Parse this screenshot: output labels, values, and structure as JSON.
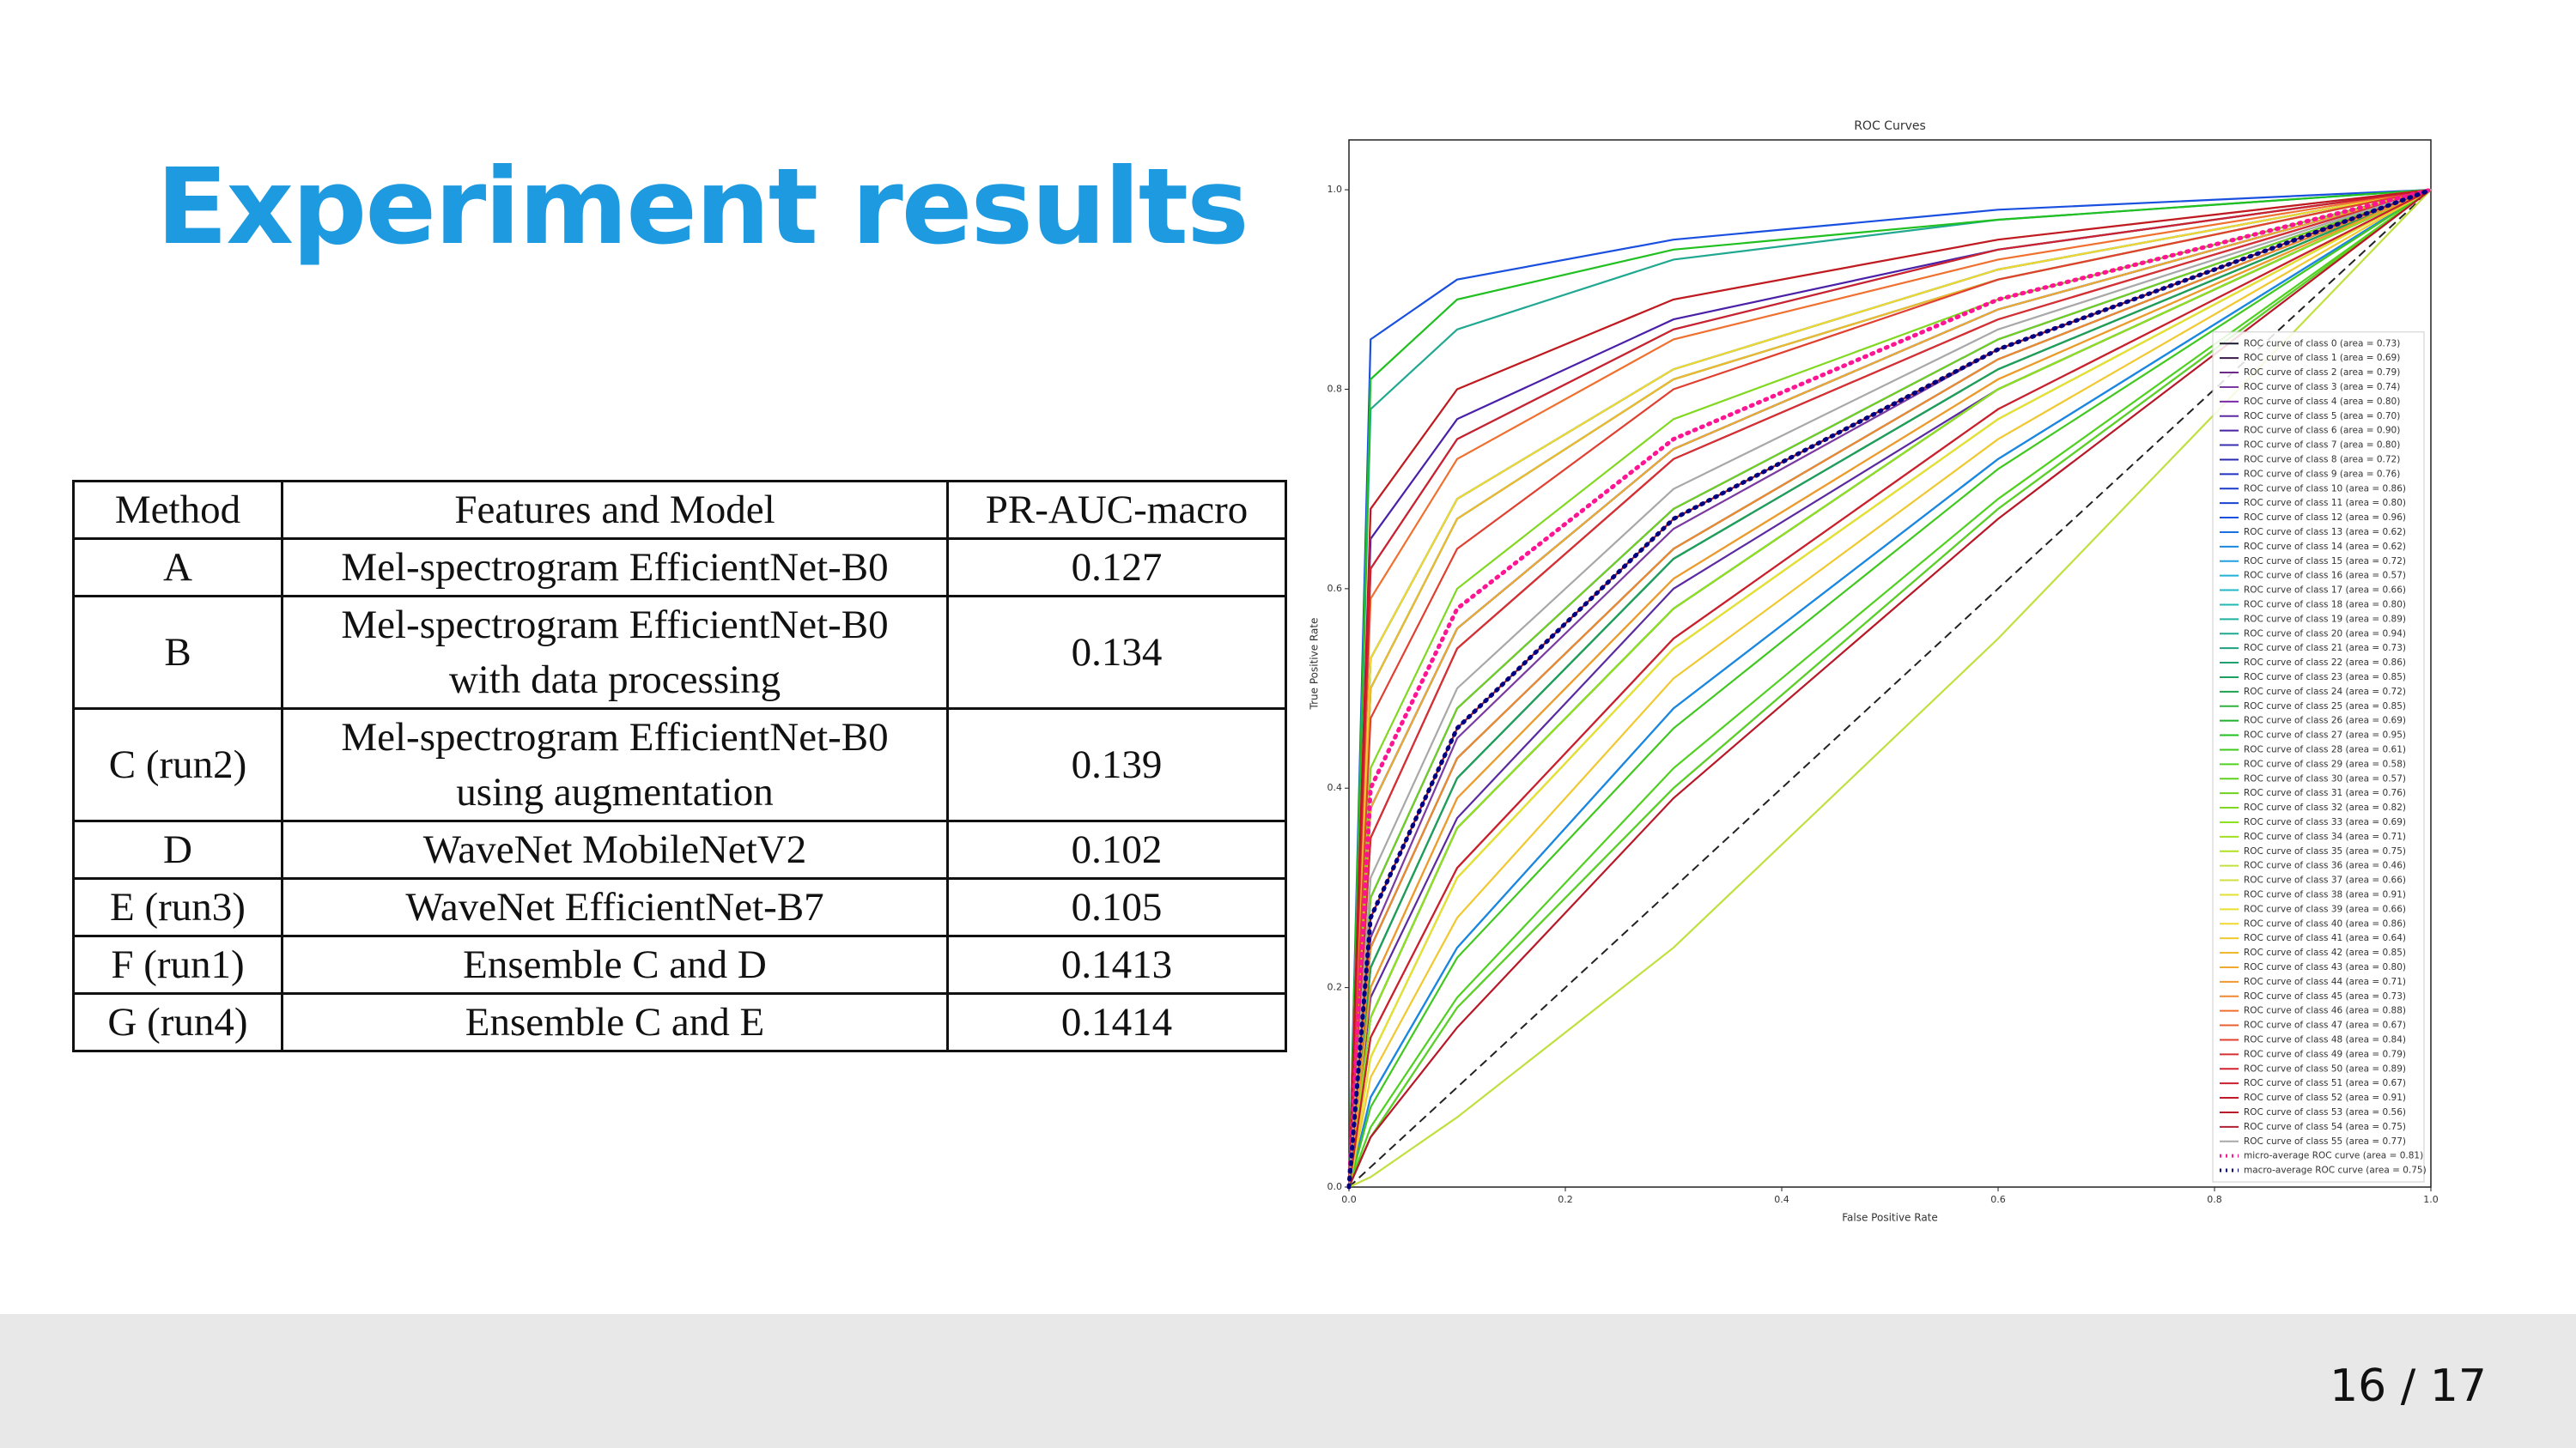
{
  "slide": {
    "title": "Experiment results",
    "page": "16 / 17"
  },
  "table": {
    "header": [
      "Method",
      "Features and Model",
      "PR-AUC-macro"
    ],
    "rows": [
      [
        "A",
        "Mel-spectrogram EfficientNet-B0",
        "0.127"
      ],
      [
        "B",
        [
          "Mel-spectrogram EfficientNet-B0",
          "with data processing"
        ],
        "0.134"
      ],
      [
        "C (run2)",
        [
          "Mel-spectrogram EfficientNet-B0",
          "using augmentation"
        ],
        "0.139"
      ],
      [
        "D",
        "WaveNet MobileNetV2",
        "0.102"
      ],
      [
        "E (run3)",
        "WaveNet EfficientNet-B7",
        "0.105"
      ],
      [
        "F (run1)",
        "Ensemble C and D",
        "0.1413"
      ],
      [
        "G (run4)",
        "Ensemble C and E",
        "0.1414"
      ]
    ]
  },
  "chart_data": {
    "type": "line",
    "title": "ROC Curves",
    "x_label": "False Positive Rate",
    "y_label": "True Positive Rate",
    "xlim": [
      0,
      1
    ],
    "ylim": [
      0,
      1.05
    ],
    "xticks": [
      {
        "value": 0,
        "label": "0.0"
      },
      0.2,
      0.4,
      0.6,
      0.8,
      {
        "value": 1,
        "label": "1.0"
      }
    ],
    "yticks": [
      {
        "value": 0,
        "label": "0.0"
      },
      0.2,
      0.4,
      0.6,
      0.8,
      {
        "value": 1,
        "label": "1.0"
      }
    ],
    "legend": "lower right",
    "x": [
      0,
      0.02,
      0.1,
      0.3,
      0.6,
      1
    ],
    "series": [
      {
        "name": "ROC curve of class 0 (area = 0.73)",
        "color": "#1a1a2e",
        "values": [
          0,
          0.24,
          0.43,
          0.64,
          0.83,
          1
        ]
      },
      {
        "name": "ROC curve of class 1 (area = 0.69)",
        "color": "#3a1a4a",
        "values": [
          0,
          0.17,
          0.36,
          0.58,
          0.8,
          1
        ]
      },
      {
        "name": "ROC curve of class 2 (area = 0.79)",
        "color": "#6a2a8a",
        "values": [
          0,
          0.35,
          0.54,
          0.73,
          0.87,
          1
        ]
      },
      {
        "name": "ROC curve of class 3 (area = 0.74)",
        "color": "#7a3aa0",
        "values": [
          0,
          0.25,
          0.45,
          0.66,
          0.84,
          1
        ]
      },
      {
        "name": "ROC curve of class 4 (area = 0.80)",
        "color": "#7a2aa8",
        "values": [
          0,
          0.38,
          0.56,
          0.74,
          0.88,
          1
        ]
      },
      {
        "name": "ROC curve of class 5 (area = 0.70)",
        "color": "#5a2aa0",
        "values": [
          0,
          0.19,
          0.37,
          0.6,
          0.8,
          1
        ]
      },
      {
        "name": "ROC curve of class 6 (area = 0.90)",
        "color": "#4a20a8",
        "values": [
          0,
          0.65,
          0.77,
          0.87,
          0.94,
          1
        ]
      },
      {
        "name": "ROC curve of class 7 (area = 0.80)",
        "color": "#3a30b0",
        "values": [
          0,
          0.38,
          0.56,
          0.74,
          0.88,
          1
        ]
      },
      {
        "name": "ROC curve of class 8 (area = 0.72)",
        "color": "#2a2ab0",
        "values": [
          0,
          0.22,
          0.41,
          0.63,
          0.82,
          1
        ]
      },
      {
        "name": "ROC curve of class 9 (area = 0.76)",
        "color": "#2030c0",
        "values": [
          0,
          0.29,
          0.48,
          0.68,
          0.85,
          1
        ]
      },
      {
        "name": "ROC curve of class 10 (area = 0.86)",
        "color": "#1a3ac8",
        "values": [
          0,
          0.53,
          0.69,
          0.82,
          0.92,
          1
        ]
      },
      {
        "name": "ROC curve of class 11 (area = 0.80)",
        "color": "#1a40d0",
        "values": [
          0,
          0.38,
          0.56,
          0.74,
          0.88,
          1
        ]
      },
      {
        "name": "ROC curve of class 12 (area = 0.96)",
        "color": "#1a50e0",
        "values": [
          0,
          0.85,
          0.91,
          0.95,
          0.98,
          1
        ]
      },
      {
        "name": "ROC curve of class 13 (area = 0.62)",
        "color": "#1a70e0",
        "values": [
          0,
          0.09,
          0.24,
          0.48,
          0.73,
          1
        ]
      },
      {
        "name": "ROC curve of class 14 (area = 0.62)",
        "color": "#1a88e0",
        "values": [
          0,
          0.09,
          0.24,
          0.48,
          0.73,
          1
        ]
      },
      {
        "name": "ROC curve of class 15 (area = 0.72)",
        "color": "#20a0e0",
        "values": [
          0,
          0.22,
          0.41,
          0.63,
          0.82,
          1
        ]
      },
      {
        "name": "ROC curve of class 16 (area = 0.57)",
        "color": "#20b0d8",
        "values": [
          0,
          0.05,
          0.18,
          0.4,
          0.68,
          1
        ]
      },
      {
        "name": "ROC curve of class 17 (area = 0.66)",
        "color": "#20b8c8",
        "values": [
          0,
          0.13,
          0.31,
          0.54,
          0.77,
          1
        ]
      },
      {
        "name": "ROC curve of class 18 (area = 0.80)",
        "color": "#20b8b0",
        "values": [
          0,
          0.38,
          0.56,
          0.74,
          0.88,
          1
        ]
      },
      {
        "name": "ROC curve of class 19 (area = 0.89)",
        "color": "#20b0a0",
        "values": [
          0,
          0.62,
          0.75,
          0.86,
          0.94,
          1
        ]
      },
      {
        "name": "ROC curve of class 20 (area = 0.94)",
        "color": "#20a890",
        "values": [
          0,
          0.78,
          0.86,
          0.93,
          0.97,
          1
        ]
      },
      {
        "name": "ROC curve of class 21 (area = 0.73)",
        "color": "#20a080",
        "values": [
          0,
          0.24,
          0.43,
          0.64,
          0.83,
          1
        ]
      },
      {
        "name": "ROC curve of class 22 (area = 0.86)",
        "color": "#20a070",
        "values": [
          0,
          0.53,
          0.69,
          0.82,
          0.92,
          1
        ]
      },
      {
        "name": "ROC curve of class 23 (area = 0.85)",
        "color": "#20a060",
        "values": [
          0,
          0.5,
          0.67,
          0.81,
          0.91,
          1
        ]
      },
      {
        "name": "ROC curve of class 24 (area = 0.72)",
        "color": "#20a050",
        "values": [
          0,
          0.22,
          0.41,
          0.63,
          0.82,
          1
        ]
      },
      {
        "name": "ROC curve of class 25 (area = 0.85)",
        "color": "#30b040",
        "values": [
          0,
          0.5,
          0.67,
          0.81,
          0.91,
          1
        ]
      },
      {
        "name": "ROC curve of class 26 (area = 0.69)",
        "color": "#20b030",
        "values": [
          0,
          0.17,
          0.36,
          0.58,
          0.8,
          1
        ]
      },
      {
        "name": "ROC curve of class 27 (area = 0.95)",
        "color": "#20c020",
        "values": [
          0,
          0.81,
          0.89,
          0.94,
          0.97,
          1
        ]
      },
      {
        "name": "ROC curve of class 28 (area = 0.61)",
        "color": "#40c820",
        "values": [
          0,
          0.08,
          0.23,
          0.46,
          0.72,
          1
        ]
      },
      {
        "name": "ROC curve of class 29 (area = 0.58)",
        "color": "#50d020",
        "values": [
          0,
          0.06,
          0.19,
          0.42,
          0.69,
          1
        ]
      },
      {
        "name": "ROC curve of class 30 (area = 0.57)",
        "color": "#60d020",
        "values": [
          0,
          0.05,
          0.18,
          0.4,
          0.68,
          1
        ]
      },
      {
        "name": "ROC curve of class 31 (area = 0.76)",
        "color": "#70d020",
        "values": [
          0,
          0.29,
          0.48,
          0.68,
          0.85,
          1
        ]
      },
      {
        "name": "ROC curve of class 32 (area = 0.82)",
        "color": "#80d820",
        "values": [
          0,
          0.42,
          0.6,
          0.77,
          0.89,
          1
        ]
      },
      {
        "name": "ROC curve of class 33 (area = 0.69)",
        "color": "#90e020",
        "values": [
          0,
          0.17,
          0.36,
          0.58,
          0.8,
          1
        ]
      },
      {
        "name": "ROC curve of class 34 (area = 0.71)",
        "color": "#a0e020",
        "values": [
          0,
          0.2,
          0.39,
          0.61,
          0.81,
          1
        ]
      },
      {
        "name": "ROC curve of class 35 (area = 0.75)",
        "color": "#b0e020",
        "values": [
          0,
          0.27,
          0.46,
          0.67,
          0.84,
          1
        ]
      },
      {
        "name": "ROC curve of class 36 (area = 0.46)",
        "color": "#c0e040",
        "values": [
          0,
          0.01,
          0.07,
          0.24,
          0.55,
          1
        ]
      },
      {
        "name": "ROC curve of class 37 (area = 0.66)",
        "color": "#d0e040",
        "values": [
          0,
          0.13,
          0.31,
          0.54,
          0.77,
          1
        ]
      },
      {
        "name": "ROC curve of class 38 (area = 0.91)",
        "color": "#e0e030",
        "values": [
          0,
          0.68,
          0.8,
          0.89,
          0.95,
          1
        ]
      },
      {
        "name": "ROC curve of class 39 (area = 0.66)",
        "color": "#e8e030",
        "values": [
          0,
          0.13,
          0.31,
          0.54,
          0.77,
          1
        ]
      },
      {
        "name": "ROC curve of class 40 (area = 0.86)",
        "color": "#f0d830",
        "values": [
          0,
          0.53,
          0.69,
          0.82,
          0.92,
          1
        ]
      },
      {
        "name": "ROC curve of class 41 (area = 0.64)",
        "color": "#f0c830",
        "values": [
          0,
          0.11,
          0.27,
          0.51,
          0.75,
          1
        ]
      },
      {
        "name": "ROC curve of class 42 (area = 0.85)",
        "color": "#f0b830",
        "values": [
          0,
          0.5,
          0.67,
          0.81,
          0.91,
          1
        ]
      },
      {
        "name": "ROC curve of class 43 (area = 0.80)",
        "color": "#f0a830",
        "values": [
          0,
          0.38,
          0.56,
          0.74,
          0.88,
          1
        ]
      },
      {
        "name": "ROC curve of class 44 (area = 0.71)",
        "color": "#f09830",
        "values": [
          0,
          0.2,
          0.39,
          0.61,
          0.81,
          1
        ]
      },
      {
        "name": "ROC curve of class 45 (area = 0.73)",
        "color": "#f08830",
        "values": [
          0,
          0.24,
          0.43,
          0.64,
          0.83,
          1
        ]
      },
      {
        "name": "ROC curve of class 46 (area = 0.88)",
        "color": "#f07030",
        "values": [
          0,
          0.59,
          0.73,
          0.85,
          0.93,
          1
        ]
      },
      {
        "name": "ROC curve of class 47 (area = 0.67)",
        "color": "#e86030",
        "values": [
          0,
          0.15,
          0.32,
          0.55,
          0.78,
          1
        ]
      },
      {
        "name": "ROC curve of class 48 (area = 0.84)",
        "color": "#e04030",
        "values": [
          0,
          0.47,
          0.64,
          0.8,
          0.91,
          1
        ]
      },
      {
        "name": "ROC curve of class 49 (area = 0.79)",
        "color": "#d83030",
        "values": [
          0,
          0.35,
          0.54,
          0.73,
          0.87,
          1
        ]
      },
      {
        "name": "ROC curve of class 50 (area = 0.89)",
        "color": "#d02030",
        "values": [
          0,
          0.62,
          0.75,
          0.86,
          0.94,
          1
        ]
      },
      {
        "name": "ROC curve of class 51 (area = 0.67)",
        "color": "#c82030",
        "values": [
          0,
          0.15,
          0.32,
          0.55,
          0.78,
          1
        ]
      },
      {
        "name": "ROC curve of class 52 (area = 0.91)",
        "color": "#c01828",
        "values": [
          0,
          0.68,
          0.8,
          0.89,
          0.95,
          1
        ]
      },
      {
        "name": "ROC curve of class 53 (area = 0.56)",
        "color": "#b81828",
        "values": [
          0,
          0.05,
          0.16,
          0.39,
          0.67,
          1
        ]
      },
      {
        "name": "ROC curve of class 54 (area = 0.75)",
        "color": "#b02030",
        "values": [
          0,
          0.27,
          0.46,
          0.67,
          0.84,
          1
        ]
      },
      {
        "name": "ROC curve of class 55 (area = 0.77)",
        "color": "#a8a8a8",
        "values": [
          0,
          0.31,
          0.5,
          0.7,
          0.86,
          1
        ]
      },
      {
        "name": "micro-average ROC curve (area = 0.81)",
        "color": "#ff1493",
        "style": "dotted",
        "values": [
          0,
          0.4,
          0.58,
          0.75,
          0.89,
          1
        ]
      },
      {
        "name": "macro-average ROC curve (area = 0.75)",
        "color": "#000080",
        "style": "dotted",
        "values": [
          0,
          0.27,
          0.46,
          0.67,
          0.84,
          1
        ]
      }
    ]
  }
}
